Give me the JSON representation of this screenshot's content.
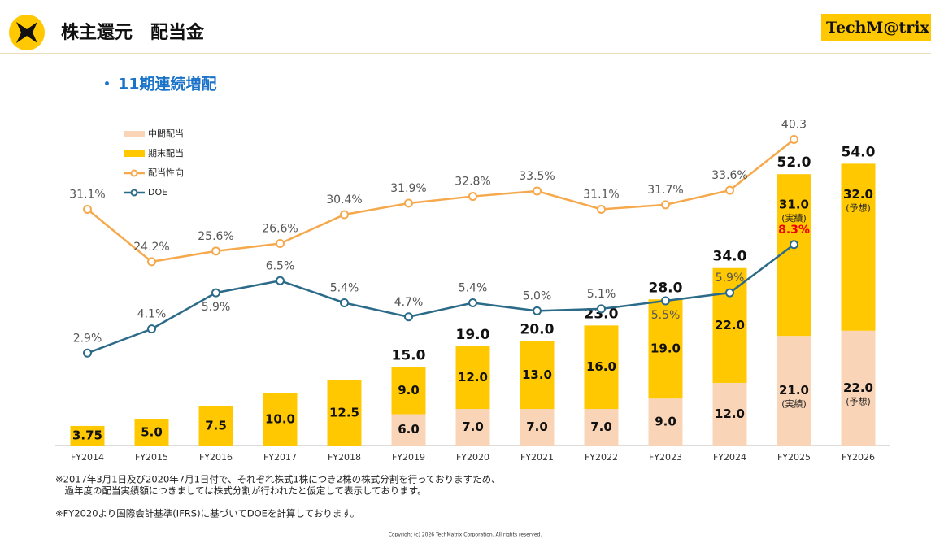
{
  "header": {
    "title": "株主還元　配当金",
    "logo": "TechM@trix"
  },
  "subtitle": "11期連続増配",
  "chart_data": {
    "type": "bar",
    "categories": [
      "FY2014",
      "FY2015",
      "FY2016",
      "FY2017",
      "FY2018",
      "FY2019",
      "FY2020",
      "FY2021",
      "FY2022",
      "FY2023",
      "FY2024",
      "FY2025",
      "FY2026"
    ],
    "ylim": [
      0,
      62
    ],
    "y2lim": [
      0,
      42.6
    ],
    "y3lim": [
      -1.7,
      14.4
    ],
    "series": [
      {
        "name": "中間配当",
        "color": "#fad4b6",
        "values": [
          null,
          null,
          null,
          null,
          null,
          6.0,
          7.0,
          7.0,
          7.0,
          9.0,
          12.0,
          21.0,
          22.0
        ],
        "value_labels": [
          null,
          null,
          null,
          null,
          null,
          "6.0",
          "7.0",
          "7.0",
          "7.0",
          "9.0",
          "12.0",
          "21.0",
          "22.0"
        ],
        "notes": [
          null,
          null,
          null,
          null,
          null,
          null,
          null,
          null,
          null,
          null,
          null,
          "(実績)",
          "(予想)"
        ]
      },
      {
        "name": "期末配当",
        "color": "#ffc800",
        "values": [
          3.75,
          5.0,
          7.5,
          10.0,
          12.5,
          9.0,
          12.0,
          13.0,
          16.0,
          19.0,
          22.0,
          31.0,
          32.0
        ],
        "value_labels": [
          "3.75",
          "5.0",
          "7.5",
          "10.0",
          "12.5",
          "9.0",
          "12.0",
          "13.0",
          "16.0",
          "19.0",
          "22.0",
          "31.0",
          "32.0"
        ],
        "notes": [
          null,
          null,
          null,
          null,
          null,
          null,
          null,
          null,
          null,
          null,
          null,
          "(実績)",
          "(予想)"
        ]
      },
      {
        "name": "配当性向",
        "type": "line",
        "axis": "y2",
        "color": "#f6a94c",
        "values": [
          31.1,
          24.2,
          25.6,
          26.6,
          30.4,
          31.9,
          32.8,
          33.5,
          31.1,
          31.7,
          33.6,
          40.3,
          null
        ],
        "value_labels": [
          "31.1%",
          "24.2%",
          "25.6%",
          "26.6%",
          "30.4%",
          "31.9%",
          "32.8%",
          "33.5%",
          "31.1%",
          "31.7%",
          "33.6%",
          "40.3",
          null
        ]
      },
      {
        "name": "DOE",
        "type": "line",
        "axis": "y3",
        "color": "#2b6a88",
        "values": [
          2.9,
          4.1,
          5.9,
          6.5,
          5.4,
          4.7,
          5.4,
          5.0,
          5.1,
          5.5,
          5.9,
          8.3,
          null
        ],
        "value_labels": [
          "2.9%",
          "4.1%",
          "5.9%",
          "6.5%",
          "5.4%",
          "4.7%",
          "5.4%",
          "5.0%",
          "5.1%",
          "5.5%",
          "5.9%",
          "8.3%",
          null
        ]
      }
    ],
    "totals": {
      "values": [
        null,
        null,
        null,
        null,
        null,
        15.0,
        19.0,
        20.0,
        23.0,
        28.0,
        34.0,
        52.0,
        54.0
      ],
      "value_labels": [
        null,
        null,
        null,
        null,
        null,
        "15.0",
        "19.0",
        "20.0",
        "23.0",
        "28.0",
        "34.0",
        "52.0",
        "54.0"
      ]
    }
  },
  "footnotes": [
    "※2017年3月1日及び2020年7月1日付で、それぞれ株式1株につき2株の株式分割を行っておりますため、",
    "　過年度の配当実績額につきましては株式分割が行われたと仮定して表示しております。",
    "※FY2020より国際会計基準(IFRS)に基づいてDOEを計算しております。"
  ],
  "copyright": "Copyright (c) 2026 TechMatrix Corporation. All rights reserved."
}
